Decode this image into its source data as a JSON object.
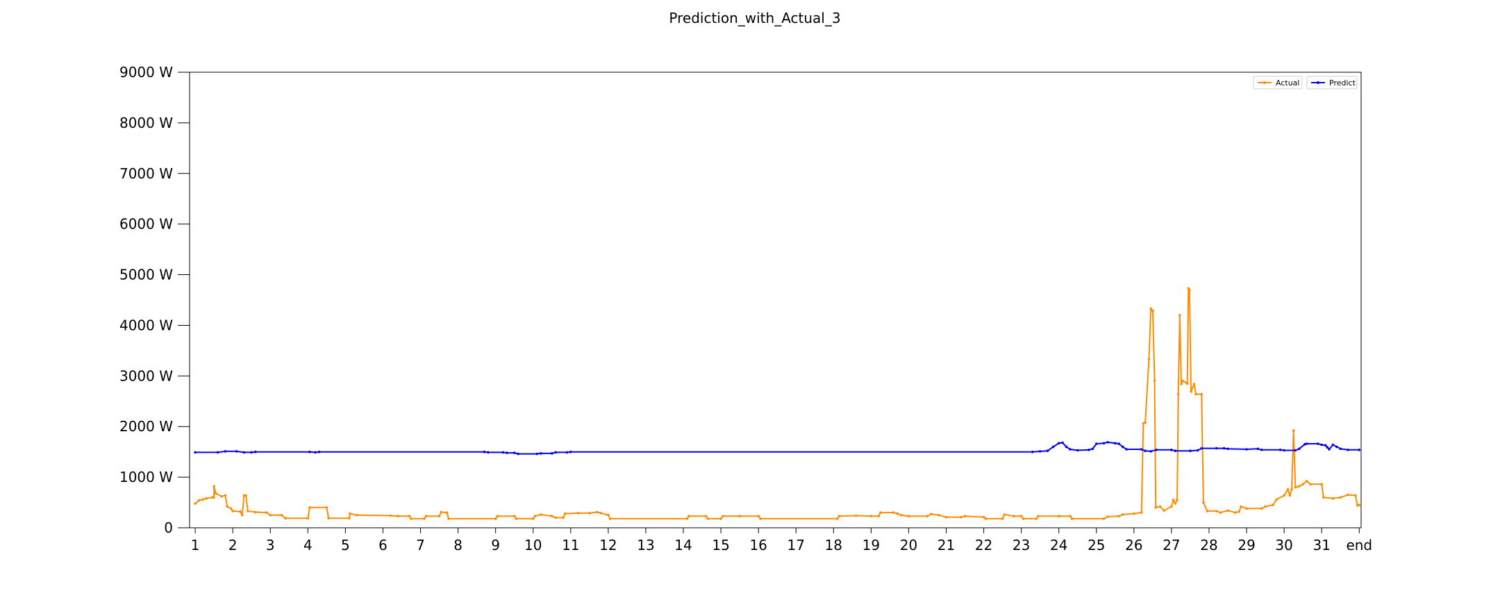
{
  "chart_data": {
    "type": "line",
    "title": "Prediction_with_Actual_3",
    "xlabel": "",
    "ylabel": "",
    "x_ticks": [
      "1",
      "2",
      "3",
      "4",
      "5",
      "6",
      "7",
      "8",
      "9",
      "10",
      "11",
      "12",
      "13",
      "14",
      "15",
      "16",
      "17",
      "18",
      "19",
      "20",
      "21",
      "22",
      "23",
      "24",
      "25",
      "26",
      "27",
      "28",
      "29",
      "30",
      "31",
      "end"
    ],
    "y_ticks": [
      0,
      1000,
      2000,
      3000,
      4000,
      5000,
      6000,
      7000,
      8000,
      9000
    ],
    "y_tick_unit": "W",
    "ylim": [
      0,
      9000
    ],
    "xlim": [
      0.85,
      32.05
    ],
    "grid": false,
    "legend_position": "top-right",
    "series": [
      {
        "name": "Actual",
        "color": "#ff8c00",
        "points": [
          [
            1.0,
            480
          ],
          [
            1.1,
            540
          ],
          [
            1.2,
            560
          ],
          [
            1.3,
            580
          ],
          [
            1.45,
            600
          ],
          [
            1.5,
            600
          ],
          [
            1.5,
            820
          ],
          [
            1.55,
            680
          ],
          [
            1.7,
            620
          ],
          [
            1.8,
            640
          ],
          [
            1.85,
            420
          ],
          [
            1.95,
            380
          ],
          [
            2.0,
            330
          ],
          [
            2.2,
            320
          ],
          [
            2.25,
            250
          ],
          [
            2.3,
            640
          ],
          [
            2.35,
            640
          ],
          [
            2.4,
            330
          ],
          [
            2.6,
            310
          ],
          [
            2.9,
            300
          ],
          [
            3.0,
            250
          ],
          [
            3.3,
            250
          ],
          [
            3.4,
            190
          ],
          [
            4.0,
            190
          ],
          [
            4.05,
            400
          ],
          [
            4.5,
            400
          ],
          [
            4.55,
            190
          ],
          [
            5.1,
            190
          ],
          [
            5.12,
            280
          ],
          [
            5.3,
            250
          ],
          [
            6.2,
            240
          ],
          [
            6.4,
            230
          ],
          [
            6.7,
            230
          ],
          [
            6.75,
            180
          ],
          [
            7.1,
            180
          ],
          [
            7.15,
            230
          ],
          [
            7.5,
            230
          ],
          [
            7.55,
            310
          ],
          [
            7.7,
            300
          ],
          [
            7.75,
            180
          ],
          [
            9.0,
            180
          ],
          [
            9.05,
            230
          ],
          [
            9.5,
            230
          ],
          [
            9.55,
            180
          ],
          [
            10.0,
            180
          ],
          [
            10.05,
            230
          ],
          [
            10.2,
            260
          ],
          [
            10.5,
            230
          ],
          [
            10.6,
            200
          ],
          [
            10.8,
            200
          ],
          [
            10.85,
            280
          ],
          [
            11.2,
            290
          ],
          [
            11.5,
            290
          ],
          [
            11.7,
            310
          ],
          [
            11.8,
            290
          ],
          [
            12.0,
            250
          ],
          [
            12.05,
            180
          ],
          [
            14.1,
            180
          ],
          [
            14.15,
            230
          ],
          [
            14.6,
            230
          ],
          [
            14.65,
            180
          ],
          [
            15.0,
            180
          ],
          [
            15.05,
            230
          ],
          [
            15.5,
            230
          ],
          [
            16.0,
            230
          ],
          [
            16.05,
            180
          ],
          [
            18.1,
            180
          ],
          [
            18.15,
            230
          ],
          [
            18.6,
            240
          ],
          [
            19.0,
            230
          ],
          [
            19.2,
            230
          ],
          [
            19.25,
            300
          ],
          [
            19.6,
            300
          ],
          [
            19.7,
            280
          ],
          [
            19.8,
            250
          ],
          [
            20.0,
            230
          ],
          [
            20.5,
            230
          ],
          [
            20.6,
            270
          ],
          [
            20.8,
            250
          ],
          [
            21.0,
            210
          ],
          [
            21.4,
            210
          ],
          [
            21.5,
            230
          ],
          [
            22.0,
            210
          ],
          [
            22.05,
            180
          ],
          [
            22.5,
            180
          ],
          [
            22.55,
            260
          ],
          [
            22.8,
            230
          ],
          [
            23.0,
            230
          ],
          [
            23.05,
            180
          ],
          [
            23.4,
            180
          ],
          [
            23.45,
            230
          ],
          [
            24.0,
            230
          ],
          [
            24.3,
            230
          ],
          [
            24.35,
            180
          ],
          [
            25.2,
            180
          ],
          [
            25.3,
            220
          ],
          [
            25.6,
            230
          ],
          [
            25.7,
            260
          ],
          [
            26.0,
            280
          ],
          [
            26.2,
            300
          ],
          [
            26.25,
            2060
          ],
          [
            26.3,
            2080
          ],
          [
            26.4,
            3330
          ],
          [
            26.45,
            4330
          ],
          [
            26.5,
            4290
          ],
          [
            26.55,
            2910
          ],
          [
            26.58,
            400
          ],
          [
            26.7,
            420
          ],
          [
            26.8,
            340
          ],
          [
            27.0,
            420
          ],
          [
            27.05,
            550
          ],
          [
            27.1,
            480
          ],
          [
            27.15,
            550
          ],
          [
            27.18,
            2640
          ],
          [
            27.22,
            4200
          ],
          [
            27.26,
            2840
          ],
          [
            27.3,
            2900
          ],
          [
            27.4,
            2860
          ],
          [
            27.42,
            2850
          ],
          [
            27.45,
            4730
          ],
          [
            27.48,
            4700
          ],
          [
            27.52,
            2690
          ],
          [
            27.6,
            2840
          ],
          [
            27.65,
            2640
          ],
          [
            27.8,
            2640
          ],
          [
            27.85,
            500
          ],
          [
            27.95,
            330
          ],
          [
            28.2,
            330
          ],
          [
            28.3,
            300
          ],
          [
            28.5,
            340
          ],
          [
            28.7,
            300
          ],
          [
            28.8,
            320
          ],
          [
            28.85,
            420
          ],
          [
            29.0,
            380
          ],
          [
            29.4,
            380
          ],
          [
            29.5,
            420
          ],
          [
            29.7,
            450
          ],
          [
            29.8,
            560
          ],
          [
            30.0,
            640
          ],
          [
            30.1,
            760
          ],
          [
            30.15,
            640
          ],
          [
            30.2,
            760
          ],
          [
            30.25,
            1920
          ],
          [
            30.3,
            800
          ],
          [
            30.4,
            820
          ],
          [
            30.5,
            860
          ],
          [
            30.6,
            920
          ],
          [
            30.7,
            860
          ],
          [
            31.0,
            860
          ],
          [
            31.05,
            600
          ],
          [
            31.3,
            580
          ],
          [
            31.5,
            600
          ],
          [
            31.7,
            650
          ],
          [
            31.9,
            640
          ],
          [
            31.95,
            440
          ],
          [
            32.0,
            450
          ]
        ]
      },
      {
        "name": "Predict",
        "color": "#0000ff",
        "points": [
          [
            1.0,
            1490
          ],
          [
            1.6,
            1490
          ],
          [
            1.8,
            1510
          ],
          [
            2.1,
            1510
          ],
          [
            2.3,
            1490
          ],
          [
            2.5,
            1490
          ],
          [
            2.6,
            1500
          ],
          [
            4.05,
            1500
          ],
          [
            4.2,
            1490
          ],
          [
            4.3,
            1500
          ],
          [
            8.7,
            1500
          ],
          [
            8.8,
            1490
          ],
          [
            9.2,
            1490
          ],
          [
            9.3,
            1480
          ],
          [
            9.5,
            1480
          ],
          [
            9.6,
            1460
          ],
          [
            10.1,
            1460
          ],
          [
            10.2,
            1470
          ],
          [
            10.5,
            1470
          ],
          [
            10.6,
            1490
          ],
          [
            10.9,
            1490
          ],
          [
            11.0,
            1500
          ],
          [
            23.3,
            1500
          ],
          [
            23.5,
            1510
          ],
          [
            23.7,
            1520
          ],
          [
            23.85,
            1600
          ],
          [
            24.0,
            1670
          ],
          [
            24.1,
            1680
          ],
          [
            24.2,
            1600
          ],
          [
            24.3,
            1550
          ],
          [
            24.5,
            1530
          ],
          [
            24.8,
            1540
          ],
          [
            24.9,
            1560
          ],
          [
            25.0,
            1660
          ],
          [
            25.2,
            1670
          ],
          [
            25.3,
            1690
          ],
          [
            25.5,
            1670
          ],
          [
            25.6,
            1660
          ],
          [
            25.7,
            1600
          ],
          [
            25.8,
            1550
          ],
          [
            26.2,
            1550
          ],
          [
            26.3,
            1520
          ],
          [
            26.45,
            1510
          ],
          [
            26.6,
            1540
          ],
          [
            27.0,
            1540
          ],
          [
            27.1,
            1520
          ],
          [
            27.5,
            1520
          ],
          [
            27.7,
            1530
          ],
          [
            27.8,
            1570
          ],
          [
            28.2,
            1570
          ],
          [
            28.4,
            1570
          ],
          [
            28.5,
            1560
          ],
          [
            29.0,
            1550
          ],
          [
            29.3,
            1560
          ],
          [
            29.4,
            1540
          ],
          [
            29.9,
            1540
          ],
          [
            30.0,
            1530
          ],
          [
            30.3,
            1530
          ],
          [
            30.4,
            1560
          ],
          [
            30.55,
            1650
          ],
          [
            30.6,
            1660
          ],
          [
            30.9,
            1660
          ],
          [
            31.0,
            1640
          ],
          [
            31.1,
            1630
          ],
          [
            31.15,
            1590
          ],
          [
            31.2,
            1550
          ],
          [
            31.3,
            1640
          ],
          [
            31.4,
            1600
          ],
          [
            31.5,
            1560
          ],
          [
            31.7,
            1540
          ],
          [
            32.0,
            1540
          ]
        ]
      }
    ]
  }
}
